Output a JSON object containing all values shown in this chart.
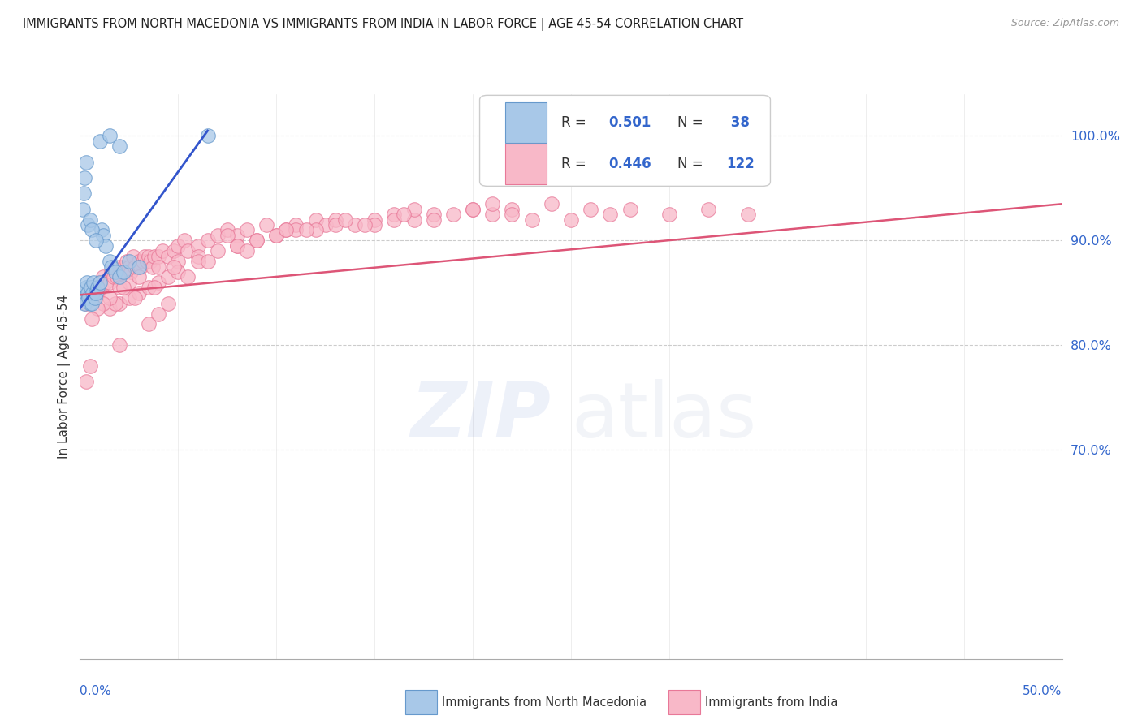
{
  "title": "IMMIGRANTS FROM NORTH MACEDONIA VS IMMIGRANTS FROM INDIA IN LABOR FORCE | AGE 45-54 CORRELATION CHART",
  "source": "Source: ZipAtlas.com",
  "ylabel": "In Labor Force | Age 45-54",
  "xmin": 0.0,
  "xmax": 50.0,
  "ymin": 50.0,
  "ymax": 104.0,
  "ytick_positions": [
    70,
    80,
    90,
    100
  ],
  "ytick_labels": [
    "70.0%",
    "80.0%",
    "90.0%",
    "100.0%"
  ],
  "blue_face": "#a8c8e8",
  "blue_edge": "#6699cc",
  "pink_face": "#f8b8c8",
  "pink_edge": "#e87898",
  "trend_blue": "#3355cc",
  "trend_pink": "#dd5577",
  "blue_trend_x0": 0.0,
  "blue_trend_y0": 83.5,
  "blue_trend_x1": 6.5,
  "blue_trend_y1": 100.5,
  "pink_trend_x0": 0.0,
  "pink_trend_y0": 84.8,
  "pink_trend_x1": 50.0,
  "pink_trend_y1": 93.5,
  "watermark_zip_color": "#8899dd",
  "watermark_atlas_color": "#aabbdd",
  "legend_blue_r": "0.501",
  "legend_blue_n": "38",
  "legend_pink_r": "0.446",
  "legend_pink_n": "122",
  "north_macedonia_x": [
    0.15,
    0.2,
    0.25,
    0.3,
    0.35,
    0.4,
    0.45,
    0.5,
    0.55,
    0.6,
    0.65,
    0.7,
    0.75,
    0.8,
    0.9,
    1.0,
    1.1,
    1.2,
    1.3,
    1.5,
    1.6,
    1.8,
    2.0,
    2.2,
    2.5,
    3.0,
    0.15,
    0.2,
    0.25,
    0.3,
    0.4,
    0.5,
    0.6,
    0.8,
    1.0,
    1.5,
    2.0,
    6.5
  ],
  "north_macedonia_y": [
    84.5,
    85.0,
    84.0,
    85.5,
    86.0,
    85.0,
    84.5,
    84.0,
    85.5,
    84.0,
    85.0,
    86.0,
    84.5,
    85.0,
    85.5,
    86.0,
    91.0,
    90.5,
    89.5,
    88.0,
    87.5,
    87.0,
    86.5,
    87.0,
    88.0,
    87.5,
    93.0,
    94.5,
    96.0,
    97.5,
    91.5,
    92.0,
    91.0,
    90.0,
    99.5,
    100.0,
    99.0,
    100.0
  ],
  "india_x": [
    0.3,
    0.5,
    0.6,
    0.7,
    0.8,
    0.9,
    1.0,
    1.1,
    1.2,
    1.3,
    1.5,
    1.6,
    1.7,
    1.8,
    1.9,
    2.0,
    2.1,
    2.2,
    2.3,
    2.4,
    2.5,
    2.6,
    2.7,
    2.8,
    3.0,
    3.1,
    3.2,
    3.3,
    3.4,
    3.5,
    3.6,
    3.7,
    3.8,
    4.0,
    4.2,
    4.5,
    4.8,
    5.0,
    5.3,
    5.5,
    6.0,
    6.5,
    7.0,
    7.5,
    8.0,
    8.5,
    9.0,
    9.5,
    10.0,
    10.5,
    11.0,
    12.0,
    12.5,
    13.0,
    14.0,
    15.0,
    16.0,
    17.0,
    18.0,
    19.0,
    20.0,
    21.0,
    22.0,
    23.0,
    24.0,
    25.0,
    26.0,
    27.0,
    28.0,
    30.0,
    32.0,
    34.0,
    2.0,
    2.5,
    3.0,
    4.0,
    5.0,
    6.0,
    8.0,
    10.0,
    12.0,
    15.0,
    18.0,
    22.0,
    1.5,
    2.0,
    2.5,
    3.0,
    3.5,
    4.0,
    4.5,
    5.0,
    6.0,
    7.0,
    8.0,
    9.0,
    11.0,
    13.0,
    16.0,
    20.0,
    5.5,
    7.5,
    10.5,
    13.5,
    17.0,
    21.0,
    16.5,
    14.5,
    11.5,
    8.5,
    6.5,
    4.8,
    3.8,
    2.8,
    2.2,
    1.8,
    1.5,
    1.2,
    0.9,
    0.6,
    0.5,
    0.3,
    2.0,
    3.5,
    4.0,
    4.5
  ],
  "india_y": [
    84.0,
    85.0,
    85.5,
    85.0,
    84.5,
    85.0,
    86.0,
    85.5,
    86.5,
    86.0,
    86.0,
    87.0,
    86.5,
    87.0,
    86.5,
    87.5,
    87.0,
    87.5,
    87.0,
    88.0,
    87.5,
    87.0,
    88.5,
    87.5,
    88.0,
    87.5,
    88.0,
    88.5,
    88.0,
    88.5,
    88.0,
    87.5,
    88.5,
    88.5,
    89.0,
    88.5,
    89.0,
    89.5,
    90.0,
    89.0,
    89.5,
    90.0,
    90.5,
    91.0,
    90.5,
    91.0,
    90.0,
    91.5,
    90.5,
    91.0,
    91.5,
    92.0,
    91.5,
    92.0,
    91.5,
    92.0,
    92.5,
    92.0,
    92.5,
    92.5,
    93.0,
    92.5,
    93.0,
    92.0,
    93.5,
    92.0,
    93.0,
    92.5,
    93.0,
    92.5,
    93.0,
    92.5,
    85.5,
    86.0,
    86.5,
    87.5,
    88.0,
    88.5,
    89.5,
    90.5,
    91.0,
    91.5,
    92.0,
    92.5,
    83.5,
    84.0,
    84.5,
    85.0,
    85.5,
    86.0,
    86.5,
    87.0,
    88.0,
    89.0,
    89.5,
    90.0,
    91.0,
    91.5,
    92.0,
    93.0,
    86.5,
    90.5,
    91.0,
    92.0,
    93.0,
    93.5,
    92.5,
    91.5,
    91.0,
    89.0,
    88.0,
    87.5,
    85.5,
    84.5,
    85.5,
    84.0,
    84.5,
    84.0,
    83.5,
    82.5,
    78.0,
    76.5,
    80.0,
    82.0,
    83.0,
    84.0
  ]
}
